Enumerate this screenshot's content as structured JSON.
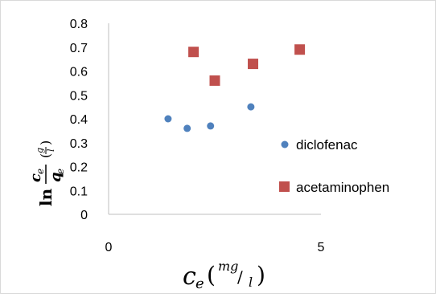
{
  "chart_data": {
    "type": "scatter",
    "title": "",
    "xlim": [
      0,
      5
    ],
    "ylim": [
      0,
      0.8
    ],
    "x_ticks": [
      "0",
      "5"
    ],
    "y_ticks": [
      "0",
      "0.1",
      "0.2",
      "0.3",
      "0.4",
      "0.5",
      "0.6",
      "0.7",
      "0.8"
    ],
    "xlabel": {
      "main": "c",
      "sub": "e",
      "unit_num": "mg",
      "unit_den": "l",
      "text": "c_e (mg/l)"
    },
    "ylabel": {
      "prefix": "ln",
      "num": "c",
      "num_sub": "e",
      "den": "q",
      "den_sub": "e",
      "unit_num": "g",
      "unit_den": "l",
      "text": "ln (c_e / q_e) (g/l)"
    },
    "grid": false,
    "legend_position": "right",
    "series": [
      {
        "name": "diclofenac",
        "marker": "circle",
        "color": "#4f81bd",
        "points": [
          [
            1.4,
            0.4
          ],
          [
            1.85,
            0.36
          ],
          [
            2.4,
            0.37
          ],
          [
            3.35,
            0.45
          ]
        ]
      },
      {
        "name": "acetaminophen",
        "marker": "square",
        "color": "#c0504d",
        "points": [
          [
            2.0,
            0.68
          ],
          [
            2.5,
            0.56
          ],
          [
            3.4,
            0.63
          ],
          [
            4.5,
            0.69
          ]
        ]
      }
    ]
  }
}
